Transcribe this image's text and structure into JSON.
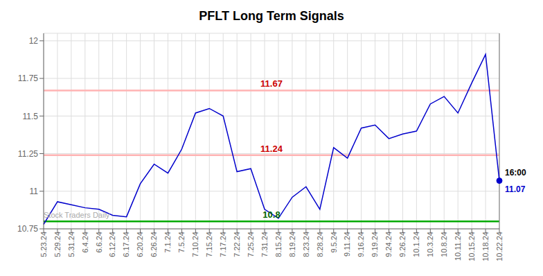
{
  "chart_data": {
    "type": "line",
    "title": "PFLT Long Term Signals",
    "categories": [
      "5.23.24",
      "5.29.24",
      "5.31.24",
      "6.4.24",
      "6.6.24",
      "6.12.24",
      "6.17.24",
      "6.20.24",
      "6.26.24",
      "7.1.24",
      "7.5.24",
      "7.10.24",
      "7.15.24",
      "7.17.24",
      "7.22.24",
      "7.25.24",
      "7.31.24",
      "8.15.24",
      "8.19.24",
      "8.23.24",
      "8.28.24",
      "9.5.24",
      "9.11.24",
      "9.16.24",
      "9.19.24",
      "9.24.24",
      "9.26.24",
      "10.1.24",
      "10.3.24",
      "10.8.24",
      "10.11.24",
      "10.15.24",
      "10.18.24",
      "10.22.24"
    ],
    "values": [
      10.78,
      10.93,
      10.91,
      10.89,
      10.88,
      10.84,
      10.83,
      11.05,
      11.18,
      11.12,
      11.28,
      11.52,
      11.55,
      11.5,
      11.13,
      11.15,
      10.88,
      10.82,
      10.96,
      11.03,
      10.88,
      11.29,
      11.22,
      11.42,
      11.44,
      11.35,
      11.38,
      11.4,
      11.58,
      11.63,
      11.52,
      11.72,
      11.91,
      11.07
    ],
    "color": "#0000cc",
    "ylim": [
      10.75,
      12.05
    ],
    "yticks": [
      10.75,
      11,
      11.25,
      11.5,
      11.75,
      12
    ],
    "grid": true,
    "hlines": [
      {
        "value": 11.67,
        "label": "11.67",
        "color": "#cc0000",
        "line_color": "#ffb3b3"
      },
      {
        "value": 11.24,
        "label": "11.24",
        "color": "#cc0000",
        "line_color": "#ffb3b3"
      },
      {
        "value": 10.8,
        "label": "10.8",
        "color": "#006600",
        "line_color": "#00aa00"
      }
    ],
    "vline": {
      "x": "10.22.24",
      "color": "#888888"
    },
    "annotations": [
      {
        "text": "16:00",
        "x": "10.22.24",
        "y": 11.07,
        "color": "#000000",
        "position": "above-right"
      },
      {
        "text": "11.07",
        "x": "10.22.24",
        "y": 11.07,
        "color": "#0000cc",
        "position": "below-right"
      },
      {
        "text": "Stock Traders Daily",
        "x": "5.23.24",
        "y": 10.8,
        "color": "#aaaaaa",
        "position": "above"
      }
    ]
  }
}
